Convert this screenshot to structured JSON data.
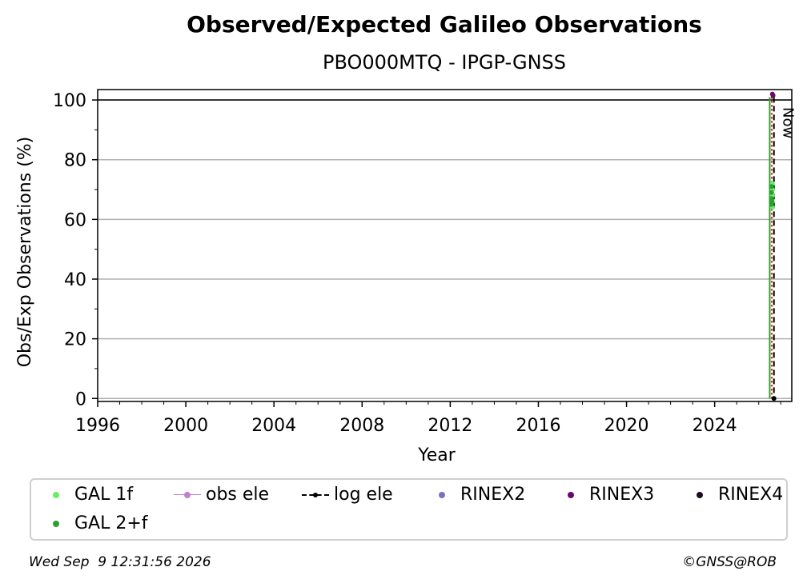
{
  "header": {
    "title": "Observed/Expected Galileo Observations",
    "subtitle": "PBO000MTQ - IPGP-GNSS"
  },
  "footer": {
    "timestamp": "Wed Sep  9 12:31:56 2026",
    "credit": "©GNSS@ROB"
  },
  "chart_data": {
    "type": "scatter",
    "title": "Observed/Expected Galileo Observations",
    "subtitle": "PBO000MTQ - IPGP-GNSS",
    "xlabel": "Year",
    "ylabel": "Obs/Exp Observations (%)",
    "xlim": [
      1996,
      2027.5
    ],
    "ylim": [
      -1,
      103.5
    ],
    "xticks": [
      1996,
      2000,
      2004,
      2008,
      2012,
      2016,
      2020,
      2024
    ],
    "yticks": [
      0,
      20,
      40,
      60,
      80,
      100
    ],
    "grid": "horizontal",
    "reference_line_y": 100,
    "now_line": {
      "x": 2026.69,
      "label": "Now",
      "color": "#000000",
      "style": "dashed"
    },
    "red_line": {
      "x": 2026.52,
      "color": "#e00000",
      "style": "dotted"
    },
    "green_line": {
      "x": 2026.5,
      "color": "#2ca02c"
    },
    "series": [
      {
        "name": "GAL 1f",
        "color": "#66ee66",
        "points": [
          [
            2026.62,
            72
          ],
          [
            2026.62,
            70
          ],
          [
            2026.62,
            68
          ],
          [
            2026.62,
            66
          ],
          [
            2026.62,
            64
          ]
        ]
      },
      {
        "name": "GAL 2+f",
        "color": "#2ca02c",
        "points": [
          [
            2026.58,
            71
          ],
          [
            2026.58,
            69
          ],
          [
            2026.58,
            67
          ],
          [
            2026.58,
            65
          ],
          [
            2026.6,
            66
          ]
        ]
      },
      {
        "name": "obs ele",
        "color": "#c080d0",
        "points": []
      },
      {
        "name": "log ele",
        "color": "#000000",
        "points": [
          [
            2026.69,
            0
          ]
        ]
      },
      {
        "name": "RINEX2",
        "color": "#8070b8",
        "points": []
      },
      {
        "name": "RINEX3",
        "color": "#6a0a6a",
        "points": [
          [
            2026.62,
            102
          ],
          [
            2026.65,
            101.5
          ]
        ]
      },
      {
        "name": "RINEX4",
        "color": "#200a20",
        "points": []
      }
    ],
    "legend": {
      "placement": "bottom",
      "entries": [
        {
          "label": "GAL 1f",
          "marker": "dot",
          "color": "#66ee66"
        },
        {
          "label": "obs ele",
          "marker": "line-dot",
          "color": "#c080d0"
        },
        {
          "label": "log ele",
          "marker": "dashed-dot",
          "color": "#000000"
        },
        {
          "label": "RINEX2",
          "marker": "dot",
          "color": "#8070b8"
        },
        {
          "label": "RINEX3",
          "marker": "dot",
          "color": "#6a0a6a"
        },
        {
          "label": "RINEX4",
          "marker": "dot",
          "color": "#200a20"
        },
        {
          "label": "GAL 2+f",
          "marker": "dot",
          "color": "#2ca02c"
        }
      ]
    }
  }
}
